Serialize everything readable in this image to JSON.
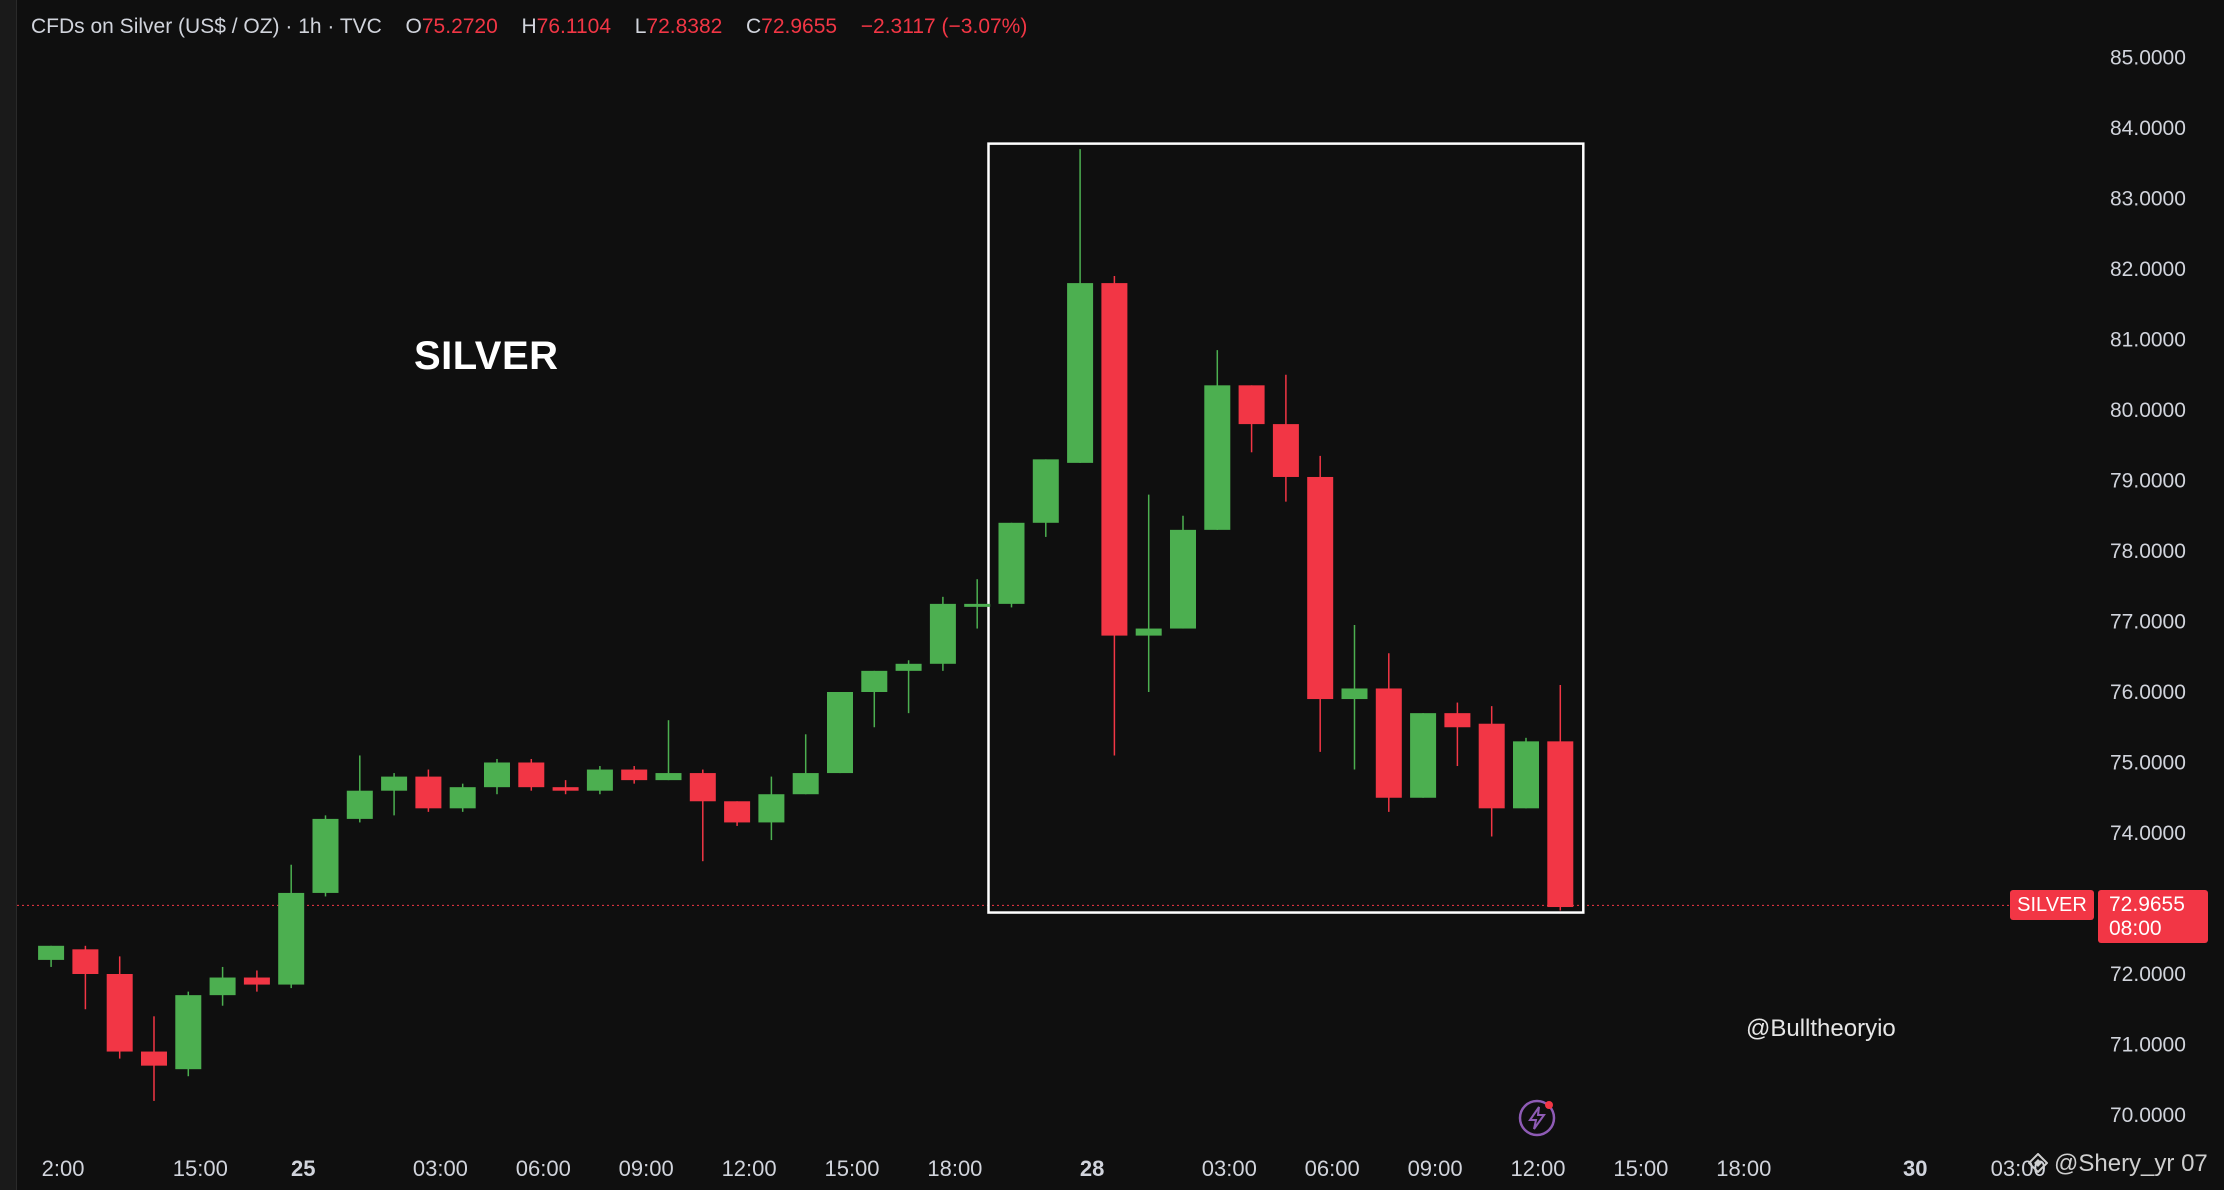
{
  "header": {
    "instrument": "CFDs on Silver (US$ / OZ) · 1h · TVC",
    "ohlc": [
      {
        "label": "O",
        "value": "75.2720"
      },
      {
        "label": "H",
        "value": "76.1104"
      },
      {
        "label": "L",
        "value": "72.8382"
      },
      {
        "label": "C",
        "value": "72.9655"
      }
    ],
    "change": "−2.3117 (−3.07%)"
  },
  "annotation_title": "SILVER",
  "watermark": "@Bulltheoryio",
  "credit": "@Shery_yr 07",
  "last_price": {
    "symbol": "SILVER",
    "price": "72.9655",
    "countdown": "08:00",
    "value": 72.9655
  },
  "colors": {
    "background": "#0f0f0f",
    "up": "#4caf50",
    "down": "#f23645",
    "text": "#d1d4dc",
    "highlight_box": "#ffffff"
  },
  "chart_data": {
    "type": "candlestick",
    "y_axis": {
      "ticks": [
        70,
        71,
        72,
        74,
        75,
        76,
        77,
        78,
        79,
        80,
        81,
        82,
        83,
        84,
        85
      ],
      "tick_labels": [
        "70.0000",
        "71.0000",
        "72.0000",
        "74.0000",
        "75.0000",
        "76.0000",
        "77.0000",
        "78.0000",
        "79.0000",
        "80.0000",
        "81.0000",
        "82.0000",
        "83.0000",
        "84.0000",
        "85.0000"
      ],
      "position": "right"
    },
    "x_axis": {
      "ticks": [
        {
          "label": "2:00",
          "hours": -13,
          "bold": false
        },
        {
          "label": "15:00",
          "hours": -9,
          "bold": false
        },
        {
          "label": "25",
          "hours": -6,
          "bold": true
        },
        {
          "label": "03:00",
          "hours": -2,
          "bold": false
        },
        {
          "label": "06:00",
          "hours": 1,
          "bold": false
        },
        {
          "label": "09:00",
          "hours": 4,
          "bold": false
        },
        {
          "label": "12:00",
          "hours": 7,
          "bold": false
        },
        {
          "label": "15:00",
          "hours": 10,
          "bold": false
        },
        {
          "label": "18:00",
          "hours": 13,
          "bold": false
        },
        {
          "label": "28",
          "hours": 17,
          "bold": true
        },
        {
          "label": "03:00",
          "hours": 21,
          "bold": false
        },
        {
          "label": "06:00",
          "hours": 24,
          "bold": false
        },
        {
          "label": "09:00",
          "hours": 27,
          "bold": false
        },
        {
          "label": "12:00",
          "hours": 30,
          "bold": false
        },
        {
          "label": "15:00",
          "hours": 33,
          "bold": false
        },
        {
          "label": "18:00",
          "hours": 36,
          "bold": false
        },
        {
          "label": "30",
          "hours": 41,
          "bold": true
        },
        {
          "label": "03:00",
          "hours": 44,
          "bold": false
        }
      ]
    },
    "candles": [
      {
        "o": 72.2,
        "h": 72.4,
        "l": 72.1,
        "c": 72.4
      },
      {
        "o": 72.35,
        "h": 72.4,
        "l": 71.5,
        "c": 72.0
      },
      {
        "o": 72.0,
        "h": 72.25,
        "l": 70.8,
        "c": 70.9
      },
      {
        "o": 70.9,
        "h": 71.4,
        "l": 70.2,
        "c": 70.7
      },
      {
        "o": 70.65,
        "h": 71.75,
        "l": 70.55,
        "c": 71.7
      },
      {
        "o": 71.7,
        "h": 72.1,
        "l": 71.55,
        "c": 71.95
      },
      {
        "o": 71.95,
        "h": 72.05,
        "l": 71.75,
        "c": 71.85
      },
      {
        "o": 71.85,
        "h": 73.55,
        "l": 71.8,
        "c": 73.15
      },
      {
        "o": 73.15,
        "h": 74.25,
        "l": 73.1,
        "c": 74.2
      },
      {
        "o": 74.2,
        "h": 75.1,
        "l": 74.15,
        "c": 74.6
      },
      {
        "o": 74.6,
        "h": 74.85,
        "l": 74.25,
        "c": 74.8
      },
      {
        "o": 74.8,
        "h": 74.9,
        "l": 74.3,
        "c": 74.35
      },
      {
        "o": 74.35,
        "h": 74.7,
        "l": 74.3,
        "c": 74.65
      },
      {
        "o": 74.65,
        "h": 75.05,
        "l": 74.55,
        "c": 75.0
      },
      {
        "o": 75.0,
        "h": 75.05,
        "l": 74.6,
        "c": 74.65
      },
      {
        "o": 74.65,
        "h": 74.75,
        "l": 74.55,
        "c": 74.6
      },
      {
        "o": 74.6,
        "h": 74.95,
        "l": 74.55,
        "c": 74.9
      },
      {
        "o": 74.9,
        "h": 74.95,
        "l": 74.7,
        "c": 74.75
      },
      {
        "o": 74.75,
        "h": 75.6,
        "l": 74.75,
        "c": 74.85
      },
      {
        "o": 74.85,
        "h": 74.9,
        "l": 73.6,
        "c": 74.45
      },
      {
        "o": 74.45,
        "h": 74.45,
        "l": 74.1,
        "c": 74.15
      },
      {
        "o": 74.15,
        "h": 74.8,
        "l": 73.9,
        "c": 74.55
      },
      {
        "o": 74.55,
        "h": 75.4,
        "l": 74.55,
        "c": 74.85
      },
      {
        "o": 74.85,
        "h": 76.0,
        "l": 74.85,
        "c": 76.0
      },
      {
        "o": 76.0,
        "h": 76.3,
        "l": 75.5,
        "c": 76.3
      },
      {
        "o": 76.3,
        "h": 76.45,
        "l": 75.7,
        "c": 76.4
      },
      {
        "o": 76.4,
        "h": 77.35,
        "l": 76.3,
        "c": 77.25
      },
      {
        "o": 77.25,
        "h": 77.6,
        "l": 76.9,
        "c": 77.25
      },
      {
        "o": 77.25,
        "h": 78.4,
        "l": 77.2,
        "c": 78.4
      },
      {
        "o": 78.4,
        "h": 79.3,
        "l": 78.2,
        "c": 79.3
      },
      {
        "o": 79.25,
        "h": 83.7,
        "l": 79.25,
        "c": 81.8
      },
      {
        "o": 81.8,
        "h": 81.9,
        "l": 75.1,
        "c": 76.8
      },
      {
        "o": 76.8,
        "h": 78.8,
        "l": 76.0,
        "c": 76.9
      },
      {
        "o": 76.9,
        "h": 78.5,
        "l": 76.9,
        "c": 78.3
      },
      {
        "o": 78.3,
        "h": 80.85,
        "l": 78.3,
        "c": 80.35
      },
      {
        "o": 80.35,
        "h": 80.35,
        "l": 79.4,
        "c": 79.8
      },
      {
        "o": 79.8,
        "h": 80.5,
        "l": 78.7,
        "c": 79.05
      },
      {
        "o": 79.05,
        "h": 79.35,
        "l": 75.15,
        "c": 75.9
      },
      {
        "o": 75.9,
        "h": 76.95,
        "l": 74.9,
        "c": 76.05
      },
      {
        "o": 76.05,
        "h": 76.55,
        "l": 74.3,
        "c": 74.5
      },
      {
        "o": 74.5,
        "h": 75.7,
        "l": 74.5,
        "c": 75.7
      },
      {
        "o": 75.7,
        "h": 75.85,
        "l": 74.95,
        "c": 75.5
      },
      {
        "o": 75.55,
        "h": 75.8,
        "l": 73.95,
        "c": 74.35
      },
      {
        "o": 74.35,
        "h": 75.35,
        "l": 74.35,
        "c": 75.3
      },
      {
        "o": 75.3,
        "h": 76.1,
        "l": 72.9,
        "c": 72.95
      }
    ],
    "first_candle_hour": -13.35,
    "highlight_box": {
      "from_index": 28,
      "to_index": 44,
      "y_low": 72.9,
      "y_high": 83.75
    }
  }
}
